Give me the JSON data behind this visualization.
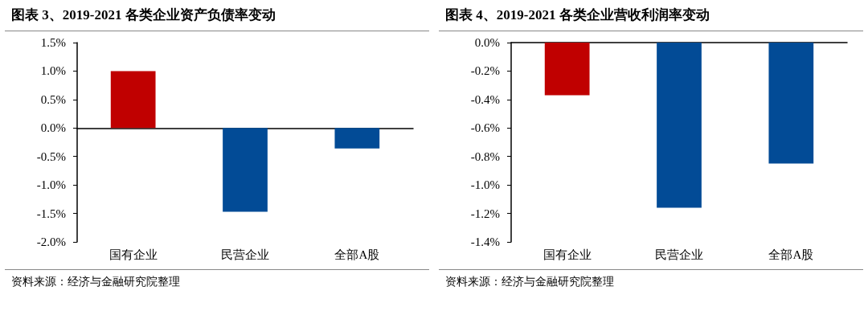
{
  "chart_data": [
    {
      "type": "bar",
      "title": "图表 3、2019-2021 各类企业资产负债率变动",
      "categories": [
        "国有企业",
        "民营企业",
        "全部A股"
      ],
      "values": [
        1.0,
        -1.47,
        -0.36
      ],
      "colors": [
        "#c00000",
        "#024b96",
        "#024b96"
      ],
      "ylim": [
        -2.0,
        1.5
      ],
      "yticks": [
        {
          "value": -2.0,
          "label": "-2.0%"
        },
        {
          "value": -1.5,
          "label": "-1.5%"
        },
        {
          "value": -1.0,
          "label": "-1.0%"
        },
        {
          "value": -0.5,
          "label": "-0.5%"
        },
        {
          "value": 0.0,
          "label": "0.0%"
        },
        {
          "value": 0.5,
          "label": "0.5%"
        },
        {
          "value": 1.0,
          "label": "1.0%"
        },
        {
          "value": 1.5,
          "label": "1.5%"
        }
      ],
      "annotations": [
        "资料来源：经济与金融研究院整理"
      ]
    },
    {
      "type": "bar",
      "title": "图表 4、2019-2021 各类企业营收利润率变动",
      "categories": [
        "国有企业",
        "民营企业",
        "全部A股"
      ],
      "values": [
        -0.37,
        -1.16,
        -0.85
      ],
      "colors": [
        "#c00000",
        "#024b96",
        "#024b96"
      ],
      "ylim": [
        -1.4,
        0.0
      ],
      "yticks": [
        {
          "value": -1.4,
          "label": "-1.4%"
        },
        {
          "value": -1.2,
          "label": "-1.2%"
        },
        {
          "value": -1.0,
          "label": "-1.0%"
        },
        {
          "value": -0.8,
          "label": "-0.8%"
        },
        {
          "value": -0.6,
          "label": "-0.6%"
        },
        {
          "value": -0.4,
          "label": "-0.4%"
        },
        {
          "value": -0.2,
          "label": "-0.2%"
        },
        {
          "value": 0.0,
          "label": "0.0%"
        }
      ],
      "annotations": [
        "资料来源：经济与金融研究院整理"
      ]
    }
  ]
}
